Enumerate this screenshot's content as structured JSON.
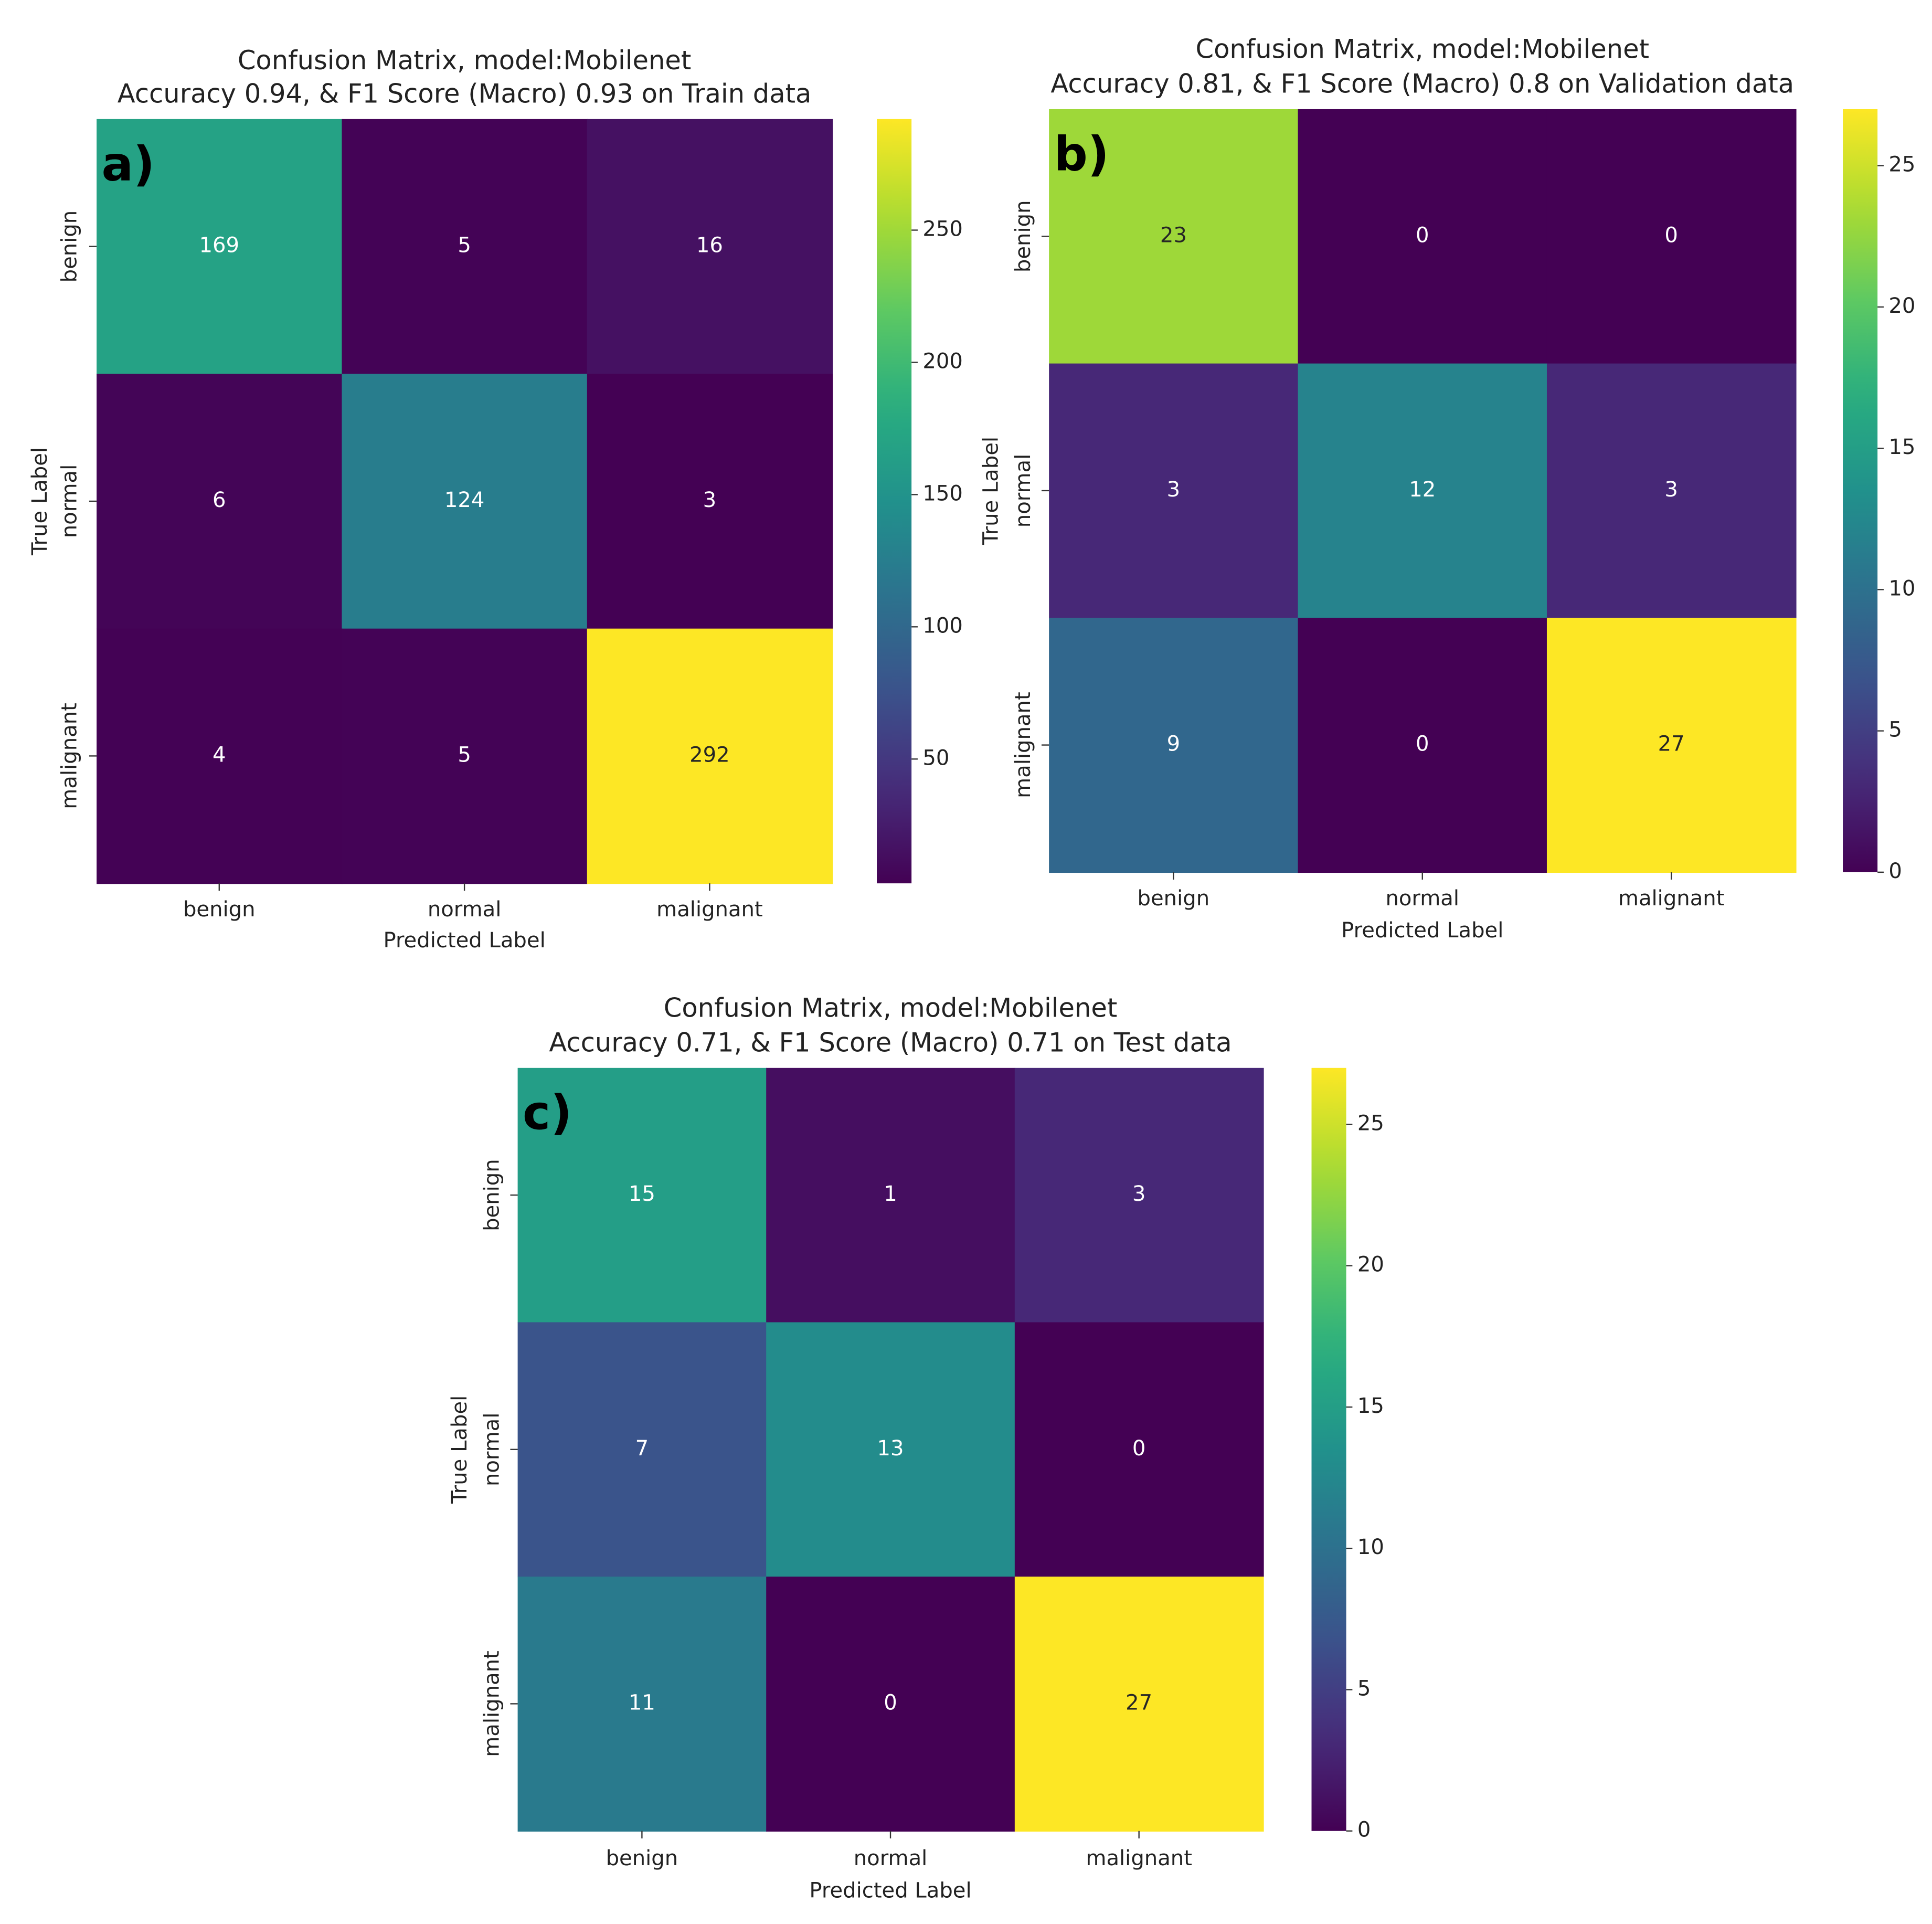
{
  "chart_data": [
    {
      "type": "heatmap",
      "title": "Confusion Matrix, model:Mobilenet",
      "subtitle": "Accuracy 0.94, & F1 Score (Macro) 0.93 on Train data",
      "annotation": "a)",
      "x_label": "Predicted Label",
      "y_label": "True Label",
      "x_categories": [
        "benign",
        "normal",
        "malignant"
      ],
      "y_categories": [
        "benign",
        "normal",
        "malignant"
      ],
      "values": [
        [
          169,
          5,
          16
        ],
        [
          6,
          124,
          3
        ],
        [
          4,
          5,
          292
        ]
      ],
      "colormap": "viridis",
      "clim": [
        3,
        292
      ],
      "cticks": [
        50,
        100,
        150,
        200,
        250
      ]
    },
    {
      "type": "heatmap",
      "title": "Confusion Matrix, model:Mobilenet",
      "subtitle": "Accuracy 0.81, & F1 Score (Macro) 0.8 on Validation data",
      "annotation": "b)",
      "x_label": "Predicted Label",
      "y_label": "True Label",
      "x_categories": [
        "benign",
        "normal",
        "malignant"
      ],
      "y_categories": [
        "benign",
        "normal",
        "malignant"
      ],
      "values": [
        [
          23,
          0,
          0
        ],
        [
          3,
          12,
          3
        ],
        [
          9,
          0,
          27
        ]
      ],
      "colormap": "viridis",
      "clim": [
        0,
        27
      ],
      "cticks": [
        0,
        5,
        10,
        15,
        20,
        25
      ]
    },
    {
      "type": "heatmap",
      "title": "Confusion Matrix, model:Mobilenet",
      "subtitle": "Accuracy 0.71, & F1 Score (Macro) 0.71 on Test data",
      "annotation": "c)",
      "x_label": "Predicted Label",
      "y_label": "True Label",
      "x_categories": [
        "benign",
        "normal",
        "malignant"
      ],
      "y_categories": [
        "benign",
        "normal",
        "malignant"
      ],
      "values": [
        [
          15,
          1,
          3
        ],
        [
          7,
          13,
          0
        ],
        [
          11,
          0,
          27
        ]
      ],
      "colormap": "viridis",
      "clim": [
        0,
        27
      ],
      "cticks": [
        0,
        5,
        10,
        15,
        20,
        25
      ]
    }
  ]
}
